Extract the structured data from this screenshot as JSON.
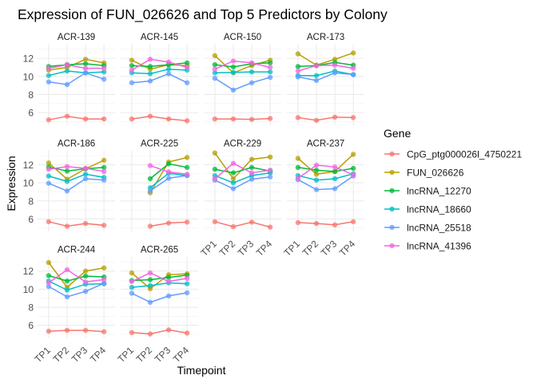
{
  "chart_data": {
    "type": "line",
    "title": "Expression of FUN_026626 and Top 5 Predictors by Colony",
    "xlabel": "Timepoint",
    "ylabel": "Expression",
    "x": [
      "TP1",
      "TP2",
      "TP3",
      "TP4"
    ],
    "yticks": [
      6,
      8,
      10,
      12
    ],
    "ylim": [
      4.6,
      13.6
    ],
    "grid": true,
    "legend": {
      "title": "Gene",
      "placement": "right"
    },
    "series_names": [
      "CpG_ptg000026l_4750221",
      "FUN_026626",
      "lncRNA_12270",
      "lncRNA_18660",
      "lncRNA_25518",
      "lncRNA_41396"
    ],
    "colors": [
      "#F8766D",
      "#B79F00",
      "#00BA38",
      "#00BFC4",
      "#619CFF",
      "#F564E3"
    ],
    "panels": [
      {
        "name": "ACR-139",
        "values": [
          [
            5.2,
            5.6,
            5.3,
            5.3
          ],
          [
            10.7,
            11.0,
            11.9,
            11.5
          ],
          [
            11.1,
            11.3,
            11.4,
            11.2
          ],
          [
            10.1,
            10.6,
            10.4,
            10.5
          ],
          [
            9.4,
            9.1,
            10.4,
            9.7
          ],
          [
            10.9,
            11.3,
            10.9,
            10.9
          ]
        ]
      },
      {
        "name": "ACR-145",
        "values": [
          [
            5.3,
            5.6,
            5.3,
            5.1
          ],
          [
            11.8,
            10.8,
            11.3,
            11.2
          ],
          [
            11.2,
            11.1,
            11.3,
            11.5
          ],
          [
            10.4,
            10.3,
            10.8,
            10.7
          ],
          [
            9.3,
            9.5,
            10.3,
            9.3
          ],
          [
            10.7,
            11.9,
            11.6,
            11.0
          ]
        ]
      },
      {
        "name": "ACR-150",
        "values": [
          [
            5.3,
            5.3,
            5.25,
            5.35
          ],
          [
            12.3,
            10.4,
            11.2,
            11.8
          ],
          [
            11.3,
            11.05,
            11.4,
            11.5
          ],
          [
            10.4,
            10.45,
            10.5,
            10.5
          ],
          [
            9.8,
            8.5,
            9.3,
            9.9
          ],
          [
            10.8,
            11.7,
            11.5,
            11.0
          ]
        ]
      },
      {
        "name": "ACR-173",
        "values": [
          [
            5.45,
            5.15,
            5.5,
            5.45
          ],
          [
            12.5,
            11.25,
            11.9,
            12.6
          ],
          [
            11.1,
            11.2,
            11.55,
            11.25
          ],
          [
            10.1,
            10.1,
            10.6,
            10.2
          ],
          [
            9.95,
            9.55,
            10.4,
            10.2
          ],
          [
            10.6,
            11.2,
            11.25,
            10.9
          ]
        ]
      },
      {
        "name": "ACR-186",
        "values": [
          [
            5.7,
            5.2,
            5.5,
            5.3
          ],
          [
            12.2,
            10.4,
            11.55,
            12.5
          ],
          [
            11.75,
            11.3,
            11.55,
            11.7
          ],
          [
            10.75,
            10.15,
            10.95,
            10.6
          ],
          [
            9.95,
            9.1,
            10.45,
            10.3
          ],
          [
            11.5,
            11.8,
            11.6,
            11.25
          ]
        ]
      },
      {
        "name": "ACR-225",
        "values": [
          [
            null,
            5.2,
            5.55,
            5.65
          ],
          [
            null,
            8.9,
            12.3,
            12.8
          ],
          [
            null,
            10.45,
            12.1,
            11.7
          ],
          [
            null,
            9.45,
            11.05,
            10.8
          ],
          [
            null,
            9.1,
            10.5,
            10.8
          ],
          [
            null,
            11.9,
            11.2,
            10.95
          ]
        ]
      },
      {
        "name": "ACR-229",
        "values": [
          [
            5.7,
            5.15,
            5.65,
            5.1
          ],
          [
            13.3,
            10.45,
            12.6,
            12.85
          ],
          [
            11.5,
            11.1,
            11.7,
            11.3
          ],
          [
            10.8,
            10.0,
            10.8,
            11.1
          ],
          [
            10.3,
            9.35,
            10.4,
            10.65
          ],
          [
            10.45,
            12.15,
            11.1,
            11.4
          ]
        ]
      },
      {
        "name": "ACR-237",
        "values": [
          [
            5.6,
            5.5,
            5.35,
            5.7
          ],
          [
            12.7,
            10.95,
            11.25,
            13.15
          ],
          [
            11.7,
            11.4,
            11.25,
            11.6
          ],
          [
            10.8,
            10.3,
            10.45,
            11.0
          ],
          [
            10.35,
            9.25,
            9.35,
            10.75
          ],
          [
            10.5,
            11.95,
            11.75,
            10.9
          ]
        ]
      },
      {
        "name": "ACR-244",
        "values": [
          [
            5.35,
            5.45,
            5.45,
            5.3
          ],
          [
            12.95,
            10.2,
            12.0,
            12.35
          ],
          [
            11.5,
            10.9,
            11.45,
            11.35
          ],
          [
            10.9,
            9.9,
            10.55,
            10.6
          ],
          [
            10.3,
            9.15,
            9.75,
            10.65
          ],
          [
            10.7,
            12.15,
            10.8,
            11.05
          ]
        ]
      },
      {
        "name": "ACR-265",
        "values": [
          [
            5.2,
            5.05,
            5.5,
            5.15
          ],
          [
            11.8,
            10.05,
            11.6,
            11.7
          ],
          [
            10.95,
            11.05,
            11.3,
            11.55
          ],
          [
            10.2,
            10.4,
            10.7,
            10.6
          ],
          [
            9.55,
            8.55,
            9.25,
            9.6
          ],
          [
            10.85,
            11.8,
            10.85,
            11.2
          ]
        ]
      }
    ]
  }
}
